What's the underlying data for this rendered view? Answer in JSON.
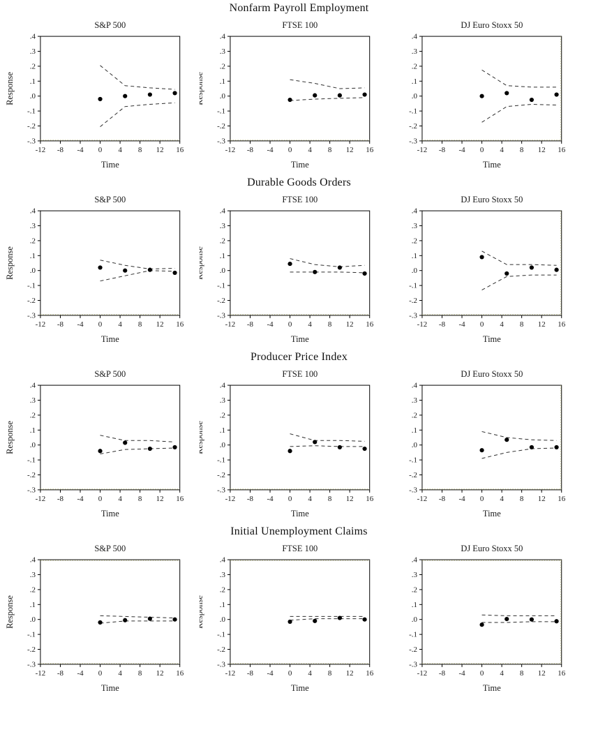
{
  "row_titles": [
    "Nonfarm Payroll Employment",
    "Durable Goods Orders",
    "Producer Price Index",
    "Initial Unemployment Claims"
  ],
  "column_titles": [
    "S&P 500",
    "FTSE 100",
    "DJ Euro Stoxx 50"
  ],
  "shared_axes": {
    "xlabel": "Time",
    "ylabel": "Response",
    "xlim": [
      -12,
      16
    ],
    "ylim": [
      -0.3,
      0.4
    ],
    "xticks": [
      -12,
      -8,
      -4,
      0,
      4,
      8,
      12,
      16
    ],
    "ytick_labels": [
      ".4",
      ".3",
      ".2",
      ".1",
      ".0",
      "-.1",
      "-.2",
      "-.3"
    ],
    "grid": "off",
    "legend": "none"
  },
  "colors": {
    "background": "#ffffff",
    "frame": "#000000",
    "point": "#000000",
    "band": "#2e2e2e",
    "grid_dot": "#bdbd85",
    "text": "#1a1a1a"
  },
  "chart_data": [
    {
      "type": "scatter",
      "group": "Nonfarm Payroll Employment",
      "title": "S&P 500",
      "x": [
        0,
        5,
        10,
        15
      ],
      "points": [
        -0.02,
        0.0,
        0.01,
        0.02
      ],
      "upper": [
        0.205,
        0.07,
        0.055,
        0.045
      ],
      "lower": [
        -0.205,
        -0.07,
        -0.055,
        -0.045
      ]
    },
    {
      "type": "scatter",
      "group": "Nonfarm Payroll Employment",
      "title": "FTSE 100",
      "x": [
        0,
        5,
        10,
        15
      ],
      "points": [
        -0.025,
        0.005,
        0.005,
        0.01
      ],
      "upper": [
        0.11,
        0.085,
        0.05,
        0.055
      ],
      "lower": [
        -0.03,
        -0.02,
        -0.015,
        -0.01
      ]
    },
    {
      "type": "scatter",
      "group": "Nonfarm Payroll Employment",
      "title": "DJ Euro Stoxx 50",
      "x": [
        0,
        5,
        10,
        15
      ],
      "points": [
        0.0,
        0.02,
        -0.025,
        0.01
      ],
      "upper": [
        0.175,
        0.07,
        0.06,
        0.06
      ],
      "lower": [
        -0.175,
        -0.07,
        -0.055,
        -0.06
      ]
    },
    {
      "type": "scatter",
      "group": "Durable Goods Orders",
      "title": "S&P 500",
      "x": [
        0,
        5,
        10,
        15
      ],
      "points": [
        0.02,
        0.0,
        0.005,
        -0.015
      ],
      "upper": [
        0.07,
        0.035,
        0.01,
        0.015
      ],
      "lower": [
        -0.07,
        -0.035,
        0.0,
        -0.005
      ]
    },
    {
      "type": "scatter",
      "group": "Durable Goods Orders",
      "title": "FTSE 100",
      "x": [
        0,
        5,
        10,
        15
      ],
      "points": [
        0.045,
        -0.01,
        0.02,
        -0.02
      ],
      "upper": [
        0.08,
        0.04,
        0.025,
        0.035
      ],
      "lower": [
        -0.01,
        -0.01,
        -0.01,
        -0.015
      ]
    },
    {
      "type": "scatter",
      "group": "Durable Goods Orders",
      "title": "DJ Euro Stoxx 50",
      "x": [
        0,
        5,
        10,
        15
      ],
      "points": [
        0.09,
        -0.02,
        0.02,
        0.005
      ],
      "upper": [
        0.13,
        0.04,
        0.04,
        0.035
      ],
      "lower": [
        -0.13,
        -0.04,
        -0.03,
        -0.03
      ]
    },
    {
      "type": "scatter",
      "group": "Producer Price Index",
      "title": "S&P 500",
      "x": [
        0,
        5,
        10,
        15
      ],
      "points": [
        -0.04,
        0.015,
        -0.025,
        -0.015
      ],
      "upper": [
        0.065,
        0.03,
        0.03,
        0.02
      ],
      "lower": [
        -0.06,
        -0.03,
        -0.025,
        -0.02
      ]
    },
    {
      "type": "scatter",
      "group": "Producer Price Index",
      "title": "FTSE 100",
      "x": [
        0,
        5,
        10,
        15
      ],
      "points": [
        -0.04,
        0.02,
        -0.015,
        -0.025
      ],
      "upper": [
        0.075,
        0.03,
        0.03,
        0.025
      ],
      "lower": [
        -0.01,
        -0.005,
        -0.01,
        -0.01
      ]
    },
    {
      "type": "scatter",
      "group": "Producer Price Index",
      "title": "DJ Euro Stoxx 50",
      "x": [
        0,
        5,
        10,
        15
      ],
      "points": [
        -0.035,
        0.035,
        -0.015,
        -0.015
      ],
      "upper": [
        0.09,
        0.05,
        0.035,
        0.03
      ],
      "lower": [
        -0.09,
        -0.05,
        -0.025,
        -0.02
      ]
    },
    {
      "type": "scatter",
      "group": "Initial Unemployment Claims",
      "title": "S&P 500",
      "x": [
        0,
        5,
        10,
        15
      ],
      "points": [
        -0.02,
        -0.005,
        0.005,
        0.0
      ],
      "upper": [
        0.025,
        0.02,
        0.015,
        0.01
      ],
      "lower": [
        -0.025,
        -0.01,
        -0.01,
        -0.01
      ]
    },
    {
      "type": "scatter",
      "group": "Initial Unemployment Claims",
      "title": "FTSE 100",
      "x": [
        0,
        5,
        10,
        15
      ],
      "points": [
        -0.015,
        -0.01,
        0.01,
        0.0
      ],
      "upper": [
        0.02,
        0.02,
        0.02,
        0.02
      ],
      "lower": [
        -0.005,
        0.005,
        0.005,
        0.005
      ]
    },
    {
      "type": "scatter",
      "group": "Initial Unemployment Claims",
      "title": "DJ Euro Stoxx 50",
      "x": [
        0,
        5,
        10,
        15
      ],
      "points": [
        -0.035,
        0.003,
        0.0,
        -0.012
      ],
      "upper": [
        0.03,
        0.025,
        0.025,
        0.025
      ],
      "lower": [
        -0.02,
        -0.02,
        -0.015,
        -0.015
      ]
    }
  ]
}
